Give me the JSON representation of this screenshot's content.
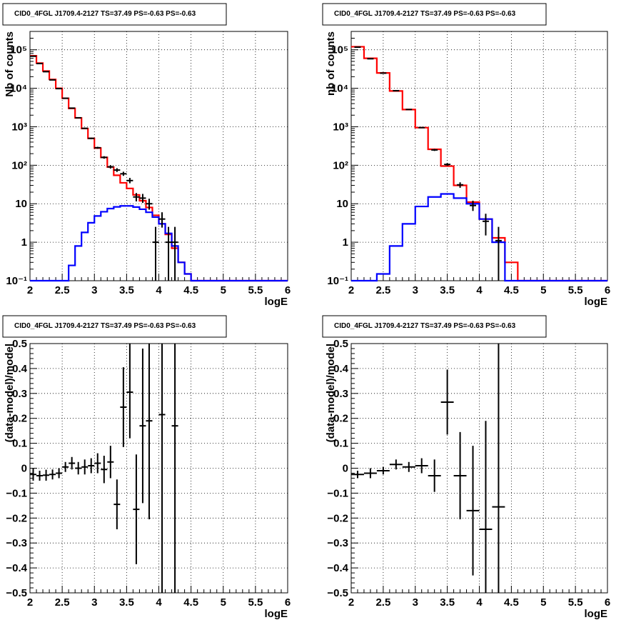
{
  "colors": {
    "model": "#ff0000",
    "source": "#0000ff",
    "data": "#000000",
    "background": "#ffffff",
    "grid": "#000000"
  },
  "chart_data": [
    {
      "type": "line",
      "title": "CID0_4FGL J1709.4-2127 TS=37.49 PS=-0.63 PS=-0.63",
      "xlabel": "logE",
      "ylabel": "Nb of counts",
      "xlim": [
        2,
        6
      ],
      "ylim": [
        0.1,
        300000
      ],
      "yscale": "log",
      "grid": true,
      "xticks": [
        "2",
        "2.5",
        "3",
        "3.5",
        "4",
        "4.5",
        "5",
        "5.5",
        "6"
      ],
      "yticks": [
        {
          "v": 0.1,
          "label": "10⁻¹"
        },
        {
          "v": 1,
          "label": "1"
        },
        {
          "v": 10,
          "label": "10"
        },
        {
          "v": 100,
          "label": "10²"
        },
        {
          "v": 1000,
          "label": "10³"
        },
        {
          "v": 10000,
          "label": "10⁴"
        },
        {
          "v": 100000,
          "label": "10⁵"
        }
      ],
      "bin_edges": [
        2.0,
        2.1,
        2.2,
        2.3,
        2.4,
        2.5,
        2.6,
        2.7,
        2.8,
        2.9,
        3.0,
        3.1,
        3.2,
        3.3,
        3.4,
        3.5,
        3.6,
        3.7,
        3.8,
        3.9,
        4.0,
        4.1,
        4.2,
        4.3,
        4.4,
        4.5,
        4.6,
        4.7,
        4.8,
        4.9,
        5.0,
        5.1,
        5.2,
        5.3,
        5.4,
        5.5,
        5.6,
        5.7,
        5.8,
        5.9,
        6.0
      ],
      "series": [
        {
          "name": "",
          "kind": "hist",
          "color": "#ff0000",
          "values": [
            70000,
            45000,
            28000,
            17000,
            10000,
            5500,
            3000,
            1700,
            900,
            500,
            280,
            160,
            90,
            55,
            35,
            25,
            17,
            12,
            8,
            5,
            3,
            1.6,
            0.7,
            0.3,
            0.15,
            0.1,
            0.1,
            0.1,
            0.1,
            0.1,
            0.1,
            0.1,
            0.1,
            0.1,
            0.1,
            0.1,
            0.1,
            0.1,
            0.1,
            0.1
          ]
        },
        {
          "name": "",
          "kind": "hist",
          "color": "#0000ff",
          "values": [
            0.1,
            0.1,
            0.1,
            0.1,
            0.1,
            0.1,
            0.25,
            0.8,
            1.8,
            3.2,
            4.8,
            6.2,
            7.5,
            8.3,
            8.8,
            8.8,
            8.2,
            7.2,
            6,
            4.5,
            3,
            1.7,
            0.8,
            0.3,
            0.15,
            0.1,
            0.1,
            0.1,
            0.1,
            0.1,
            0.1,
            0.1,
            0.1,
            0.1,
            0.1,
            0.1,
            0.1,
            0.1,
            0.1,
            0.1
          ]
        },
        {
          "name": "",
          "kind": "points",
          "color": "#000000",
          "x": [
            2.05,
            2.15,
            2.25,
            2.35,
            2.45,
            2.55,
            2.65,
            2.75,
            2.85,
            2.95,
            3.05,
            3.15,
            3.25,
            3.35,
            3.45,
            3.55,
            3.65,
            3.75,
            3.85,
            3.95,
            4.05,
            4.15,
            4.25
          ],
          "y": [
            68000,
            44000,
            27000,
            16500,
            9800,
            5500,
            3050,
            1710,
            910,
            500,
            285,
            160,
            91,
            75,
            60,
            40,
            15,
            14,
            10,
            1,
            4,
            1,
            1
          ],
          "ylo": [
            67700,
            43800,
            26800,
            16370,
            9700,
            5430,
            3000,
            1670,
            880,
            478,
            268,
            148,
            82,
            67,
            53,
            34,
            11.5,
            10.5,
            7,
            0.1,
            2.4,
            0.1,
            0.1
          ],
          "yhi": [
            68300,
            44200,
            27200,
            16630,
            9900,
            5570,
            3100,
            1750,
            940,
            522,
            302,
            172,
            100,
            84,
            68,
            47,
            19,
            18,
            13.5,
            2.5,
            6,
            2.5,
            2.5
          ]
        }
      ]
    },
    {
      "type": "line",
      "title": "CID0_4FGL J1709.4-2127 TS=37.49 PS=-0.63 PS=-0.63",
      "xlabel": "logE",
      "ylabel": "nb of counts",
      "xlim": [
        2,
        6
      ],
      "ylim": [
        0.1,
        300000
      ],
      "yscale": "log",
      "grid": true,
      "xticks": [
        "2",
        "2.5",
        "3",
        "3.5",
        "4",
        "4.5",
        "5",
        "5.5",
        "6"
      ],
      "yticks": [
        {
          "v": 0.1,
          "label": "10⁻¹"
        },
        {
          "v": 1,
          "label": "1"
        },
        {
          "v": 10,
          "label": "10"
        },
        {
          "v": 100,
          "label": "10²"
        },
        {
          "v": 1000,
          "label": "10³"
        },
        {
          "v": 10000,
          "label": "10⁴"
        },
        {
          "v": 100000,
          "label": "10⁵"
        }
      ],
      "bin_edges": [
        2.0,
        2.2,
        2.4,
        2.6,
        2.8,
        3.0,
        3.2,
        3.4,
        3.6,
        3.8,
        4.0,
        4.2,
        4.4,
        4.6,
        4.8,
        5.0,
        5.2,
        5.4,
        5.6,
        5.8,
        6.0
      ],
      "series": [
        {
          "name": "",
          "kind": "hist",
          "color": "#ff0000",
          "values": [
            120000,
            60000,
            25000,
            8500,
            2800,
            950,
            260,
            95,
            30,
            11,
            4,
            1.3,
            0.3,
            0.1,
            0.1,
            0.1,
            0.1,
            0.1,
            0.1,
            0.1
          ]
        },
        {
          "name": "",
          "kind": "hist",
          "color": "#0000ff",
          "values": [
            0.1,
            0.1,
            0.15,
            0.8,
            3,
            8.5,
            15,
            18,
            14,
            10,
            4,
            1,
            0.1,
            0.1,
            0.1,
            0.1,
            0.1,
            0.1,
            0.1,
            0.1
          ]
        },
        {
          "name": "",
          "kind": "points",
          "color": "#000000",
          "x": [
            2.1,
            2.3,
            2.5,
            2.7,
            2.9,
            3.1,
            3.3,
            3.5,
            3.7,
            3.9,
            4.1,
            4.3
          ],
          "y": [
            117000,
            58500,
            24800,
            8650,
            2810,
            950,
            250,
            105,
            31,
            9,
            3.5,
            1.1
          ],
          "ylo": [
            116600,
            58200,
            24600,
            8550,
            2760,
            920,
            235,
            96,
            26,
            6.5,
            1.5,
            0.1
          ],
          "yhi": [
            117400,
            58800,
            25000,
            8750,
            2860,
            980,
            265,
            114,
            36,
            12,
            5.5,
            2.5
          ]
        }
      ]
    },
    {
      "type": "scatter",
      "title": "CID0_4FGL J1709.4-2127 TS=37.49 PS=-0.63 PS=-0.63",
      "xlabel": "logE",
      "ylabel": "(data-model)/model",
      "xlim": [
        2,
        6
      ],
      "ylim": [
        -0.5,
        0.5
      ],
      "grid": true,
      "xticks": [
        "2",
        "2.5",
        "3",
        "3.5",
        "4",
        "4.5",
        "5",
        "5.5",
        "6"
      ],
      "yticks": [
        "−0.5",
        "−0.4",
        "−0.3",
        "−0.2",
        "−0.1",
        "0",
        "0.1",
        "0.2",
        "0.3",
        "0.4",
        "0.5"
      ],
      "series": [
        {
          "name": "",
          "color": "#000000",
          "xhalf": 0.05,
          "x": [
            2.05,
            2.15,
            2.25,
            2.35,
            2.45,
            2.55,
            2.65,
            2.75,
            2.85,
            2.95,
            3.05,
            3.15,
            3.25,
            3.35,
            3.45,
            3.55,
            3.65,
            3.75,
            3.85,
            4.05,
            4.25
          ],
          "y": [
            -0.025,
            -0.03,
            -0.028,
            -0.025,
            -0.02,
            0.005,
            0.02,
            0.0,
            0.005,
            0.01,
            0.02,
            -0.005,
            0.025,
            -0.145,
            0.245,
            0.305,
            -0.165,
            0.17,
            0.19,
            0.215,
            0.17
          ],
          "ylo": [
            -0.05,
            -0.05,
            -0.05,
            -0.045,
            -0.04,
            -0.015,
            -0.005,
            -0.025,
            -0.025,
            -0.02,
            -0.02,
            -0.06,
            -0.04,
            -0.245,
            0.085,
            0.12,
            -0.385,
            -0.14,
            -0.205,
            -0.5,
            -0.5
          ],
          "yhi": [
            0.0,
            -0.01,
            -0.006,
            -0.005,
            0.0,
            0.025,
            0.045,
            0.025,
            0.035,
            0.04,
            0.06,
            0.05,
            0.09,
            -0.045,
            0.405,
            0.5,
            0.055,
            0.48,
            0.5,
            0.5,
            0.5
          ]
        }
      ]
    },
    {
      "type": "scatter",
      "title": "CID0_4FGL J1709.4-2127 TS=37.49 PS=-0.63 PS=-0.63",
      "xlabel": "logE",
      "ylabel": "(data-model)/model",
      "xlim": [
        2,
        6
      ],
      "ylim": [
        -0.5,
        0.5
      ],
      "grid": true,
      "xticks": [
        "2",
        "2.5",
        "3",
        "3.5",
        "4",
        "4.5",
        "5",
        "5.5",
        "6"
      ],
      "yticks": [
        "−0.5",
        "−0.4",
        "−0.3",
        "−0.2",
        "−0.1",
        "0",
        "0.1",
        "0.2",
        "0.3",
        "0.4",
        "0.5"
      ],
      "series": [
        {
          "name": "",
          "color": "#000000",
          "xhalf": 0.1,
          "x": [
            2.1,
            2.3,
            2.5,
            2.7,
            2.9,
            3.1,
            3.3,
            3.5,
            3.7,
            3.9,
            4.1,
            4.3
          ],
          "y": [
            -0.025,
            -0.02,
            -0.01,
            0.015,
            0.005,
            0.01,
            -0.03,
            0.265,
            -0.03,
            -0.17,
            -0.245,
            -0.155
          ],
          "ylo": [
            -0.04,
            -0.04,
            -0.025,
            -0.005,
            -0.015,
            -0.02,
            -0.095,
            0.135,
            -0.205,
            -0.43,
            -0.5,
            -0.5
          ],
          "yhi": [
            -0.01,
            0.0,
            0.005,
            0.035,
            0.025,
            0.04,
            0.035,
            0.395,
            0.145,
            0.09,
            0.19,
            0.5
          ]
        }
      ]
    }
  ]
}
